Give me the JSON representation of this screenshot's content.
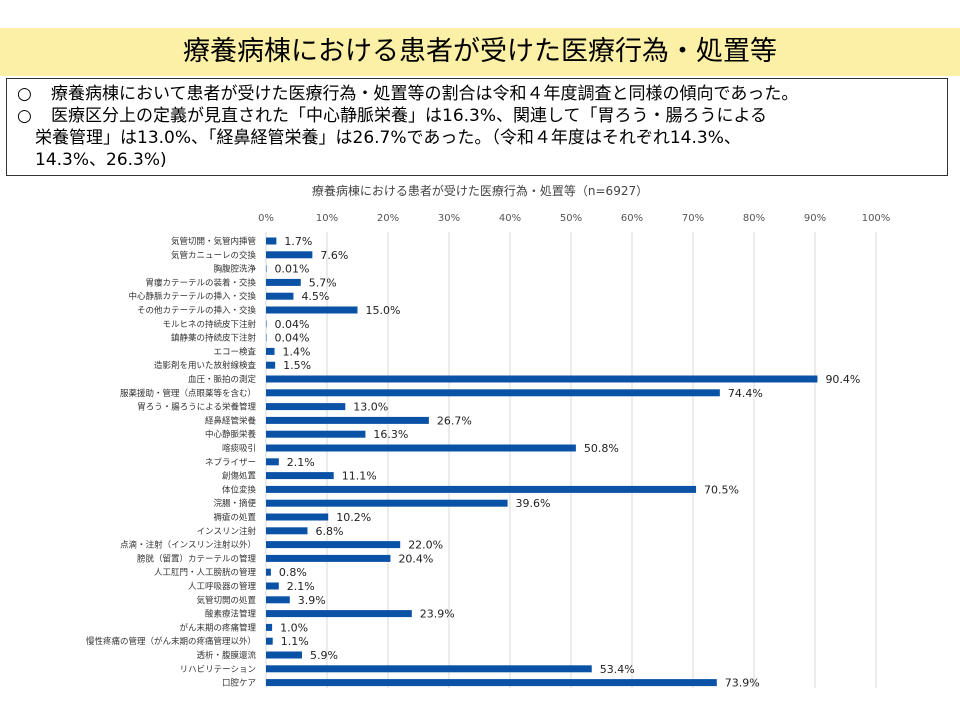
{
  "header": {
    "title": "療養病棟における患者が受けた医療行為・処置等"
  },
  "summary": {
    "bullet_mark": "○",
    "bullet1": "療養病棟において患者が受けた医療行為・処置等の割合は令和４年度調査と同様の傾向であった。",
    "bullet2_line1": "医療区分上の定義が見直された「中心静脈栄養」は16.3%、関連して「胃ろう・腸ろうによる",
    "bullet2_line2": "栄養管理」は13.0%、「経鼻経管栄養」は26.7%であった。（令和４年度はそれぞれ14.3%、",
    "bullet2_line3": "14.3%、26.3%)"
  },
  "chart_data": {
    "type": "bar",
    "orientation": "horizontal",
    "title": "療養病棟における患者が受けた医療行為・処置等（n=6927）",
    "xlim": [
      0,
      100
    ],
    "x_ticks": [
      "0%",
      "10%",
      "20%",
      "30%",
      "40%",
      "50%",
      "60%",
      "70%",
      "80%",
      "90%",
      "100%"
    ],
    "grid": true,
    "bar_color": "#0a52a6",
    "categories": [
      "気管切開・気管内挿管",
      "気管カニューレの交換",
      "胸腹腔洗浄",
      "胃瘻カテーテルの装着・交換",
      "中心静脈カテーテルの挿入・交換",
      "その他カテーテルの挿入・交換",
      "モルヒネの持続皮下注射",
      "鎮静薬の持続皮下注射",
      "エコー検査",
      "造影剤を用いた放射線検査",
      "血圧・脈拍の測定",
      "服薬援助・管理（点眼薬等を含む）",
      "胃ろう・腸ろうによる栄養管理",
      "経鼻経管栄養",
      "中心静脈栄養",
      "喀痰吸引",
      "ネブライザー",
      "創傷処置",
      "体位変換",
      "浣腸・摘便",
      "褥瘡の処置",
      "インスリン注射",
      "点滴・注射（インスリン注射以外）",
      "膀胱（留置）カテーテルの管理",
      "人工肛門・人工膀胱の管理",
      "人工呼吸器の管理",
      "気管切開の処置",
      "酸素療法管理",
      "がん末期の疼痛管理",
      "慢性疼痛の管理（がん末期の疼痛管理以外）",
      "透析・腹膜還流",
      "リハビリテーション",
      "口腔ケア"
    ],
    "values": [
      1.7,
      7.6,
      0.01,
      5.7,
      4.5,
      15.0,
      0.04,
      0.04,
      1.4,
      1.5,
      90.4,
      74.4,
      13.0,
      26.7,
      16.3,
      50.8,
      2.1,
      11.1,
      70.5,
      39.6,
      10.2,
      6.8,
      22.0,
      20.4,
      0.8,
      2.1,
      3.9,
      23.9,
      1.0,
      1.1,
      5.9,
      53.4,
      73.9
    ],
    "value_labels": [
      "1.7%",
      "7.6%",
      "0.01%",
      "5.7%",
      "4.5%",
      "15.0%",
      "0.04%",
      "0.04%",
      "1.4%",
      "1.5%",
      "90.4%",
      "74.4%",
      "13.0%",
      "26.7%",
      "16.3%",
      "50.8%",
      "2.1%",
      "11.1%",
      "70.5%",
      "39.6%",
      "10.2%",
      "6.8%",
      "22.0%",
      "20.4%",
      "0.8%",
      "2.1%",
      "3.9%",
      "23.9%",
      "1.0%",
      "1.1%",
      "5.9%",
      "53.4%",
      "73.9%"
    ]
  }
}
